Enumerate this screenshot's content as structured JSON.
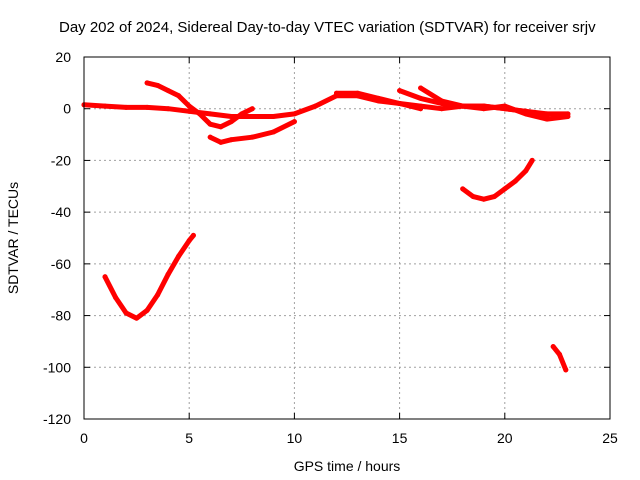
{
  "chart_data": {
    "type": "scatter",
    "title": "Day 202 of 2024, Sidereal Day-to-day VTEC variation (SDTVAR) for receiver srjv",
    "xlabel": "GPS time / hours",
    "ylabel": "SDTVAR / TECUs",
    "xlim": [
      0,
      25
    ],
    "ylim": [
      -120,
      20
    ],
    "xticks": [
      0,
      5,
      10,
      15,
      20,
      25
    ],
    "yticks": [
      -120,
      -100,
      -80,
      -60,
      -40,
      -20,
      0,
      20
    ],
    "grid": true,
    "series_color": "#ff0000",
    "series": [
      {
        "name": "track-1",
        "x": [
          0,
          1,
          2,
          3,
          4,
          5,
          6,
          7,
          8,
          9,
          10,
          11,
          12,
          13,
          14,
          15,
          16,
          17,
          18,
          19,
          20,
          21,
          22,
          23
        ],
        "y": [
          1.5,
          1,
          0.5,
          0.5,
          0,
          -1,
          -2,
          -3,
          -3,
          -3,
          -2,
          1,
          5,
          5,
          3,
          2,
          1,
          0,
          1,
          1,
          0,
          -1,
          -2,
          -2
        ]
      },
      {
        "name": "track-2",
        "x": [
          3,
          3.5,
          4,
          4.5,
          5,
          5.5,
          6,
          6.5,
          7,
          7.5,
          8
        ],
        "y": [
          10,
          9,
          7,
          5,
          1,
          -2,
          -6,
          -7,
          -5,
          -2,
          0
        ]
      },
      {
        "name": "track-3",
        "x": [
          6,
          6.5,
          7,
          8,
          9,
          10
        ],
        "y": [
          -11,
          -13,
          -12,
          -11,
          -9,
          -5
        ]
      },
      {
        "name": "track-4",
        "x": [
          12,
          13,
          14,
          15,
          15.5,
          16
        ],
        "y": [
          6,
          6,
          4,
          2,
          1,
          0
        ]
      },
      {
        "name": "track-5",
        "x": [
          15,
          16,
          17,
          18,
          19,
          20,
          21,
          22
        ],
        "y": [
          7,
          4,
          2,
          1,
          1,
          0,
          -1,
          -3
        ]
      },
      {
        "name": "track-6",
        "x": [
          16,
          17,
          18,
          19,
          20,
          21,
          22,
          23
        ],
        "y": [
          8,
          3,
          1,
          0,
          1,
          -2,
          -4,
          -3
        ]
      },
      {
        "name": "track-7",
        "x": [
          1,
          1.5,
          2,
          2.5,
          3,
          3.5,
          4,
          4.5,
          5,
          5.2
        ],
        "y": [
          -65,
          -73,
          -79,
          -81,
          -78,
          -72,
          -64,
          -57,
          -51,
          -49
        ]
      },
      {
        "name": "track-8",
        "x": [
          18,
          18.5,
          19,
          19.5,
          20,
          20.5,
          21,
          21.3
        ],
        "y": [
          -31,
          -34,
          -35,
          -34,
          -31,
          -28,
          -24,
          -20
        ]
      },
      {
        "name": "track-9",
        "x": [
          22.3,
          22.6,
          22.9
        ],
        "y": [
          -92,
          -95,
          -101
        ]
      }
    ]
  }
}
